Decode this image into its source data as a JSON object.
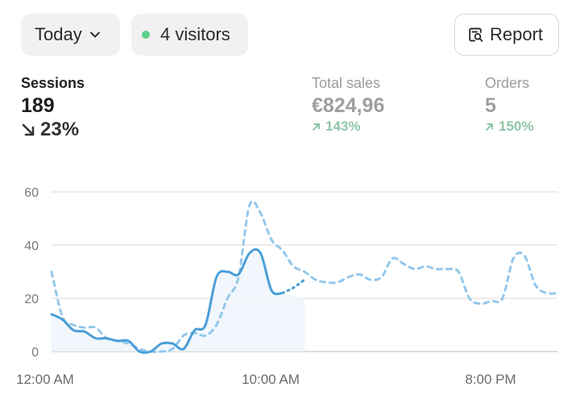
{
  "toolbar": {
    "period_label": "Today",
    "visitors_label": "4 visitors",
    "report_label": "Report"
  },
  "metrics": [
    {
      "label": "Sessions",
      "value": "189",
      "change": "23%",
      "direction": "down"
    },
    {
      "label": "Total sales",
      "value": "€824,96",
      "change": "143%",
      "direction": "up"
    },
    {
      "label": "Orders",
      "value": "5",
      "change": "150%",
      "direction": "up"
    }
  ],
  "colors": {
    "primary_line": "#4a9fd8",
    "comparison_line": "#93c7ec",
    "live_dot": "#5ed08d",
    "positive_change": "#8fc4a6"
  },
  "chart_data": {
    "type": "line",
    "x_ticks": [
      "12:00 AM",
      "10:00 AM",
      "8:00 PM"
    ],
    "y_ticks": [
      0,
      20,
      40,
      60
    ],
    "ylim": [
      0,
      60
    ],
    "xlim": [
      0,
      23
    ],
    "grid": true,
    "series": [
      {
        "style": "solid",
        "x": [
          0,
          0.5,
          1,
          1.5,
          2,
          2.5,
          3,
          3.5,
          4,
          4.5,
          5,
          5.5,
          6,
          6.5,
          7,
          7.5,
          8,
          8.5,
          9,
          9.5,
          10,
          10.5
        ],
        "values": [
          14,
          12,
          8,
          7.5,
          5,
          5,
          4,
          4,
          0,
          0,
          3,
          3,
          1,
          8,
          10,
          28,
          30,
          29,
          37,
          37,
          23,
          22
        ]
      },
      {
        "style": "dotted",
        "x": [
          10.5,
          11,
          11.5
        ],
        "values": [
          22,
          24,
          27
        ]
      },
      {
        "style": "dashed",
        "x": [
          0,
          0.5,
          1,
          1.5,
          2,
          2.5,
          3,
          3.5,
          4,
          4.5,
          5,
          5.5,
          6,
          6.5,
          7,
          7.5,
          8,
          8.5,
          9,
          9.5,
          10,
          10.5,
          11,
          11.5,
          12,
          12.5,
          13,
          13.5,
          14,
          14.5,
          15,
          15.5,
          16,
          16.5,
          17,
          17.5,
          18,
          18.5,
          19,
          19.5,
          20,
          20.5,
          21,
          21.5,
          22,
          22.5,
          23
        ],
        "values": [
          30,
          13,
          10,
          9,
          9,
          5,
          4,
          3,
          1,
          0,
          0,
          1,
          6,
          7,
          6,
          10,
          20,
          28,
          55,
          52,
          42,
          38,
          32,
          30,
          27,
          26,
          26,
          28,
          29,
          27,
          28,
          35,
          33,
          31,
          32,
          31,
          31,
          30,
          20,
          18,
          19,
          20,
          35,
          36,
          25,
          22,
          22
        ]
      }
    ]
  }
}
